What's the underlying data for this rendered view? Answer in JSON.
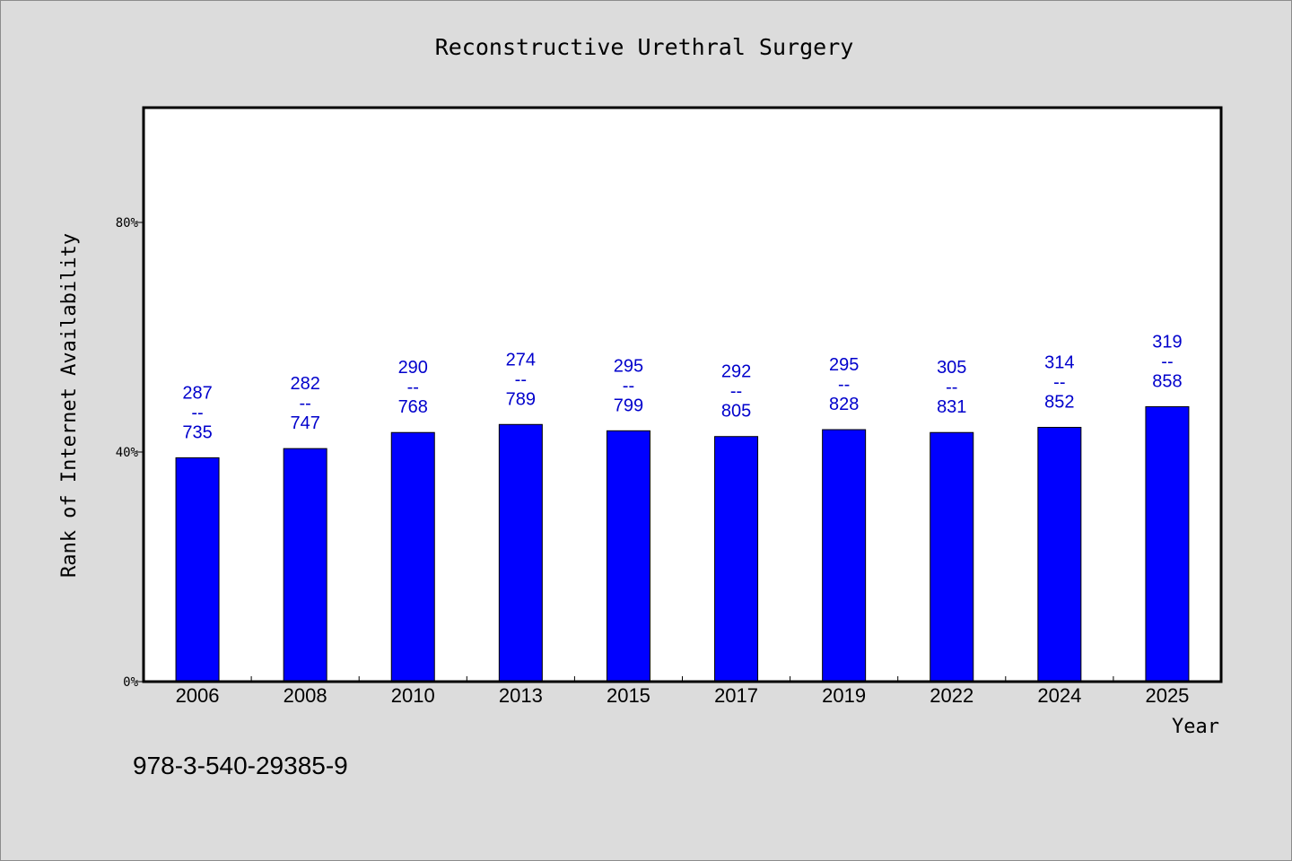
{
  "chart_data": {
    "type": "bar",
    "title": "Reconstructive Urethral Surgery",
    "xlabel": "Year",
    "ylabel": "Rank of Internet Availability",
    "categories": [
      "2006",
      "2008",
      "2010",
      "2013",
      "2015",
      "2017",
      "2019",
      "2022",
      "2024",
      "2025"
    ],
    "values": [
      39.0,
      40.6,
      43.4,
      44.8,
      43.7,
      42.7,
      43.9,
      43.4,
      44.3,
      47.9
    ],
    "data_labels": [
      {
        "top": "287",
        "mid": "--",
        "bottom": "735"
      },
      {
        "top": "282",
        "mid": "--",
        "bottom": "747"
      },
      {
        "top": "290",
        "mid": "--",
        "bottom": "768"
      },
      {
        "top": "274",
        "mid": "--",
        "bottom": "789"
      },
      {
        "top": "295",
        "mid": "--",
        "bottom": "799"
      },
      {
        "top": "292",
        "mid": "--",
        "bottom": "805"
      },
      {
        "top": "295",
        "mid": "--",
        "bottom": "828"
      },
      {
        "top": "305",
        "mid": "--",
        "bottom": "831"
      },
      {
        "top": "314",
        "mid": "--",
        "bottom": "852"
      },
      {
        "top": "319",
        "mid": "--",
        "bottom": "858"
      }
    ],
    "yticks": [
      {
        "value": 0,
        "label": "0%"
      },
      {
        "value": 40,
        "label": "40%"
      },
      {
        "value": 80,
        "label": "80%"
      }
    ],
    "ylim": [
      0,
      100
    ],
    "grid": false,
    "legend": "none",
    "colors": {
      "bar": "#0000ff",
      "label": "#0000cc",
      "background": "#dcdcdc",
      "plot": "#ffffff"
    }
  },
  "footer": {
    "isbn": "978-3-540-29385-9"
  }
}
